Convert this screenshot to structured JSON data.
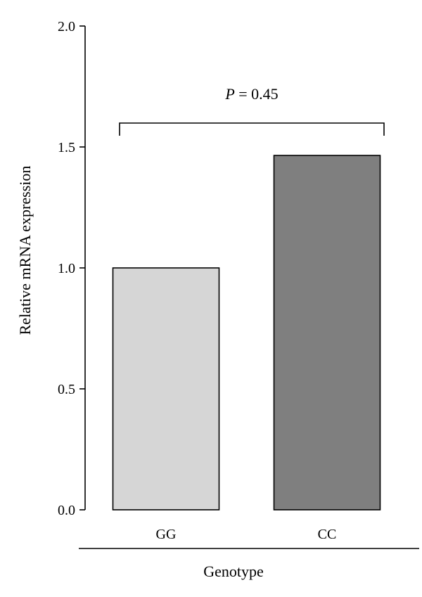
{
  "chart_data": {
    "type": "bar",
    "categories": [
      "GG",
      "CC"
    ],
    "values": [
      1.0,
      1.465
    ],
    "bar_colors": [
      "#d6d6d6",
      "#7f7f7f"
    ],
    "ylabel": "Relative mRNA expression",
    "xlabel": "Genotype",
    "ylim": [
      0,
      2.0
    ],
    "yticks": [
      "0.0",
      "0.5",
      "1.0",
      "1.5",
      "2.0"
    ],
    "grid": false,
    "annotation": {
      "p_symbol": "P",
      "p_text": " = 0.45",
      "bracket_from": "GG",
      "bracket_to": "CC"
    }
  }
}
